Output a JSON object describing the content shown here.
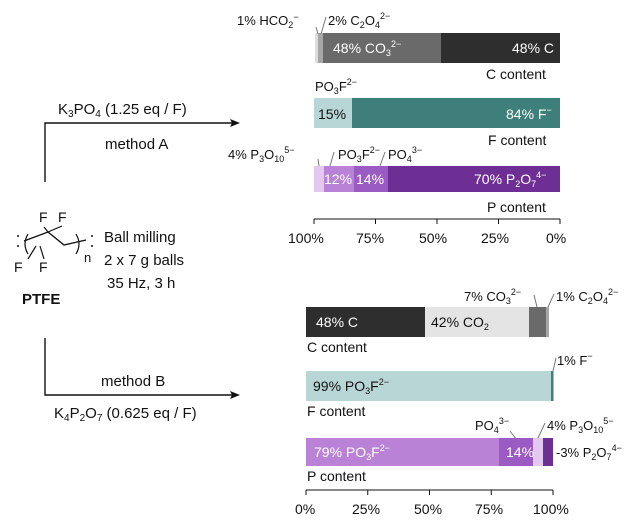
{
  "reactant": {
    "atoms": [
      "F",
      "F",
      "F",
      "F"
    ],
    "subscript": "n",
    "name": "PTFE"
  },
  "conditions": [
    "Ball milling",
    "2 x 7 g balls",
    "35 Hz, 3 h"
  ],
  "method_a": {
    "reagent": "K3PO4 (1.25 eq / F)",
    "label": "method A"
  },
  "method_b": {
    "label": "method B",
    "reagent": "K4P2O7 (0.625 eq / F)"
  },
  "axis_ticks": [
    "100%",
    "75%",
    "50%",
    "25%",
    "0%"
  ],
  "axis_ticks_b": [
    "0%",
    "25%",
    "50%",
    "75%",
    "100%"
  ],
  "chart_data": [
    {
      "type": "bar",
      "orientation": "horizontal-stacked",
      "x_direction": "reversed",
      "xlim": [
        100,
        0
      ],
      "tick_labels": [
        "100%",
        "75%",
        "50%",
        "25%",
        "0%"
      ],
      "bars": [
        {
          "name": "C content",
          "segments": [
            {
              "label": "1% HCO2−",
              "value": 1,
              "color": "#dcdcdc"
            },
            {
              "label": "2% C2O42−",
              "value": 2,
              "color": "#a7a7a7"
            },
            {
              "label": "48% CO32−",
              "value": 48,
              "color": "#6a6a6a"
            },
            {
              "label": "48% C",
              "value": 48,
              "color": "#2e2e2e"
            }
          ]
        },
        {
          "name": "F content",
          "segments": [
            {
              "label": "PO3F2−",
              "value": 15,
              "color": "#b8d6d6"
            },
            {
              "label": "15%",
              "value": 15,
              "color": "#b8d6d6"
            },
            {
              "label": "84% F−",
              "value": 84,
              "color": "#3f7f7b"
            }
          ]
        },
        {
          "name": "P content",
          "segments": [
            {
              "label": "4% P3O105−",
              "value": 4,
              "color": "#e3c8f0"
            },
            {
              "label": "12%",
              "value": 12,
              "color": "#b982d6"
            },
            {
              "label": "14%",
              "value": 14,
              "color": "#9a5cc2"
            },
            {
              "label": "70% P2O74−",
              "value": 70,
              "color": "#6e2f95"
            }
          ]
        }
      ]
    },
    {
      "type": "bar",
      "orientation": "horizontal-stacked",
      "xlim": [
        0,
        100
      ],
      "tick_labels": [
        "0%",
        "25%",
        "50%",
        "75%",
        "100%"
      ],
      "bars": [
        {
          "name": "C content",
          "segments": [
            {
              "label": "48% C",
              "value": 48,
              "color": "#2e2e2e"
            },
            {
              "label": "42% CO2",
              "value": 42,
              "color": "#e4e4e4"
            },
            {
              "label": "7% CO32−",
              "value": 7,
              "color": "#6a6a6a"
            },
            {
              "label": "1% C2O42−",
              "value": 1,
              "color": "#a7a7a7"
            }
          ]
        },
        {
          "name": "F content",
          "segments": [
            {
              "label": "99% PO3F2−",
              "value": 99,
              "color": "#b8d6d6"
            },
            {
              "label": "1% F−",
              "value": 1,
              "color": "#3f7f7b"
            }
          ]
        },
        {
          "name": "P content",
          "segments": [
            {
              "label": "79% PO3F2−",
              "value": 79,
              "color": "#b982d6"
            },
            {
              "label": "14%",
              "value": 14,
              "color": "#9a5cc2"
            },
            {
              "label": "4% P3O105−",
              "value": 4,
              "color": "#e3c8f0"
            },
            {
              "label": "3% P2O74−",
              "value": 3,
              "color": "#6e2f95"
            }
          ]
        }
      ]
    }
  ]
}
